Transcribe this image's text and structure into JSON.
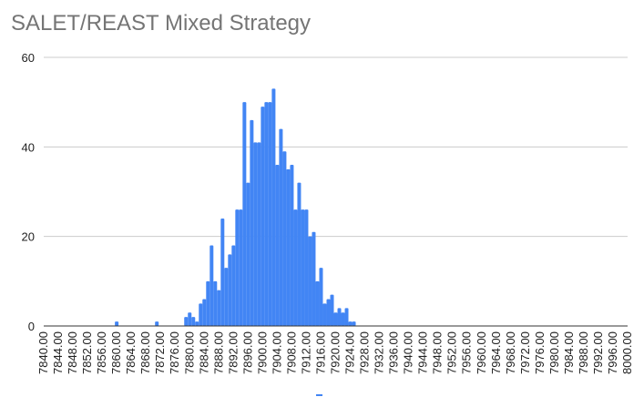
{
  "chart_data": {
    "type": "bar",
    "title": "SALET/REAST Mixed Strategy",
    "xlabel": "",
    "ylabel": "",
    "ylim": [
      0,
      60
    ],
    "yticks": [
      0,
      20,
      40,
      60
    ],
    "bar_color": "#4285f4",
    "grid": true,
    "legend": "bottom",
    "x_start": 7840,
    "x_step": 1,
    "x_tick_every": 4,
    "x_tick_labels": [
      "7840.00",
      "7844.00",
      "7848.00",
      "7852.00",
      "7856.00",
      "7860.00",
      "7864.00",
      "7868.00",
      "7872.00",
      "7876.00",
      "7880.00",
      "7884.00",
      "7888.00",
      "7892.00",
      "7896.00",
      "7900.00",
      "7904.00",
      "7908.00",
      "7912.00",
      "7916.00",
      "7920.00",
      "7924.00",
      "7928.00",
      "7932.00",
      "7936.00",
      "7940.00",
      "7944.00",
      "7948.00",
      "7952.00",
      "7956.00",
      "7960.00",
      "7964.00",
      "7968.00",
      "7972.00",
      "7976.00",
      "7980.00",
      "7984.00",
      "7988.00",
      "7992.00",
      "7996.00",
      "8000.00"
    ],
    "values": [
      0,
      0,
      0,
      0,
      0,
      0,
      0,
      0,
      0,
      0,
      0,
      0,
      0,
      0,
      0,
      0,
      0,
      0,
      0,
      0,
      1,
      0,
      0,
      0,
      0,
      0,
      0,
      0,
      0,
      0,
      0,
      1,
      0,
      0,
      0,
      0,
      0,
      0,
      0,
      2,
      3,
      2,
      1,
      5,
      6,
      10,
      18,
      10,
      8,
      24,
      13,
      16,
      18,
      26,
      26,
      50,
      32,
      46,
      41,
      41,
      49,
      50,
      50,
      53,
      36,
      44,
      39,
      35,
      36,
      26,
      32,
      26,
      26,
      20,
      21,
      10,
      13,
      5,
      6,
      7,
      3,
      4,
      3,
      4,
      1,
      1,
      0,
      0,
      0,
      0,
      0,
      0,
      0,
      0,
      0,
      0,
      0,
      0,
      0,
      0,
      0,
      0,
      0,
      0,
      0,
      0,
      0,
      0,
      0,
      0,
      0,
      0,
      0,
      0,
      0,
      0,
      0,
      0,
      0,
      0,
      0,
      0,
      0,
      0,
      0,
      0,
      0,
      0,
      0,
      0,
      0,
      0,
      0,
      0,
      0,
      0,
      0,
      0,
      0,
      0,
      0,
      0,
      0,
      0,
      0,
      0,
      0,
      0,
      0,
      0,
      0,
      0,
      0,
      0,
      0,
      0,
      0,
      0,
      0,
      0,
      0
    ]
  }
}
